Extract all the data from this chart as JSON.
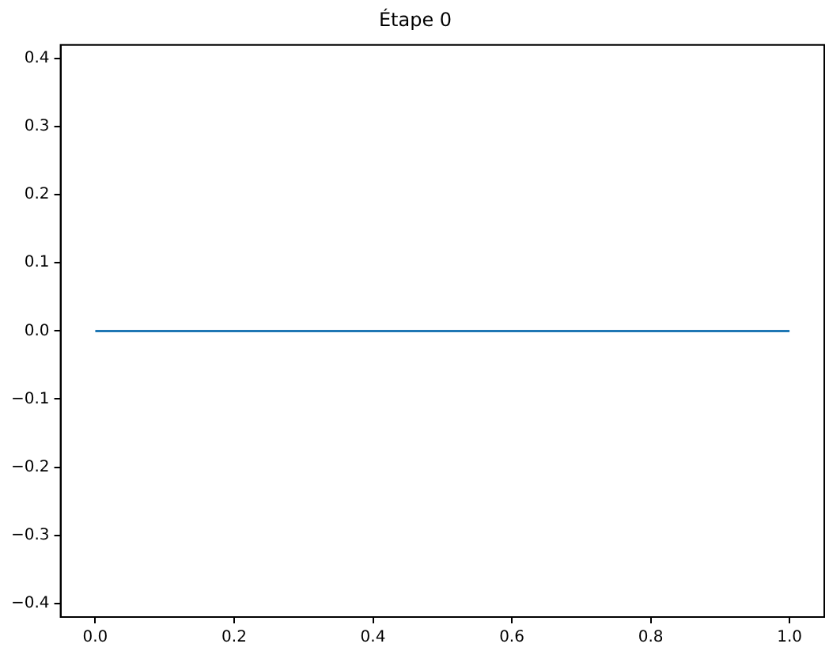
{
  "chart_data": {
    "type": "line",
    "title": "Étape 0",
    "x": [
      0,
      1
    ],
    "series": [
      {
        "color": "#1f77b4",
        "values": [
          0,
          0
        ]
      }
    ],
    "xlim": [
      -0.05,
      1.05
    ],
    "xticks": [
      {
        "value": 0,
        "label": "0.0"
      },
      {
        "value": 0.2,
        "label": "0.2"
      },
      {
        "value": 0.4,
        "label": "0.4"
      },
      {
        "value": 0.6,
        "label": "0.6"
      },
      {
        "value": 0.8,
        "label": "0.8"
      },
      {
        "value": 1,
        "label": "1.0"
      }
    ],
    "ylim": [
      -0.42,
      0.42
    ],
    "yticks": [
      {
        "value": -0.4,
        "label": "−0.4"
      },
      {
        "value": -0.3,
        "label": "−0.3"
      },
      {
        "value": -0.2,
        "label": "−0.2"
      },
      {
        "value": -0.1,
        "label": "−0.1"
      },
      {
        "value": 0,
        "label": "0.0"
      },
      {
        "value": 0.1,
        "label": "0.1"
      },
      {
        "value": 0.2,
        "label": "0.2"
      },
      {
        "value": 0.3,
        "label": "0.3"
      },
      {
        "value": 0.4,
        "label": "0.4"
      }
    ],
    "grid": false,
    "legend": false,
    "marker": "none",
    "line_style": "solid"
  }
}
